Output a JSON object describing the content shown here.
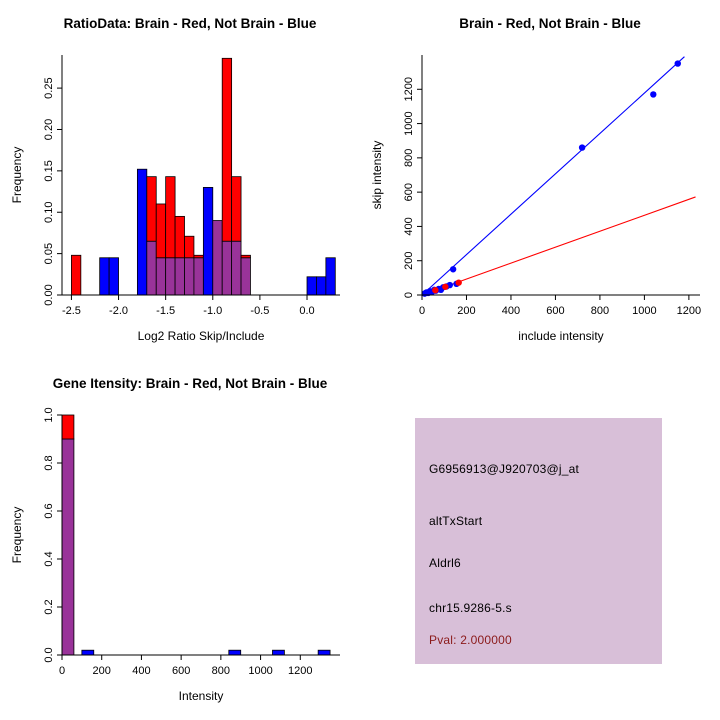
{
  "colors": {
    "red": "#FF0000",
    "blue": "#0000FF",
    "purple": "#993399",
    "background": "#FFFFFF",
    "axis": "#000000",
    "info_box_bg": "#D8BFD8",
    "pval_color": "#8B1A1A",
    "text": "#000000"
  },
  "chart_data": [
    {
      "id": "ratio_hist",
      "type": "bar",
      "title": "RatioData: Brain - Red, Not Brain - Blue",
      "xlabel": "Log2 Ratio Skip/Include",
      "ylabel": "Frequency",
      "xlim": [
        -2.6,
        0.35
      ],
      "ylim": [
        0,
        0.29
      ],
      "xticks": [
        -2.5,
        -2.0,
        -1.5,
        -1.0,
        -0.5,
        0.0
      ],
      "xtick_labels": [
        "-2.5",
        "-2.0",
        "-1.5",
        "-1.0",
        "-0.5",
        "0.0"
      ],
      "yticks": [
        0,
        0.05,
        0.1,
        0.15,
        0.2,
        0.25
      ],
      "ytick_labels": [
        "0.00",
        "0.05",
        "0.10",
        "0.15",
        "0.20",
        "0.25"
      ],
      "bin_width": 0.1,
      "bins": [
        {
          "x": -2.5,
          "red": 0.048,
          "blue": 0
        },
        {
          "x": -2.2,
          "red": 0,
          "blue": 0.045
        },
        {
          "x": -2.1,
          "red": 0,
          "blue": 0.045
        },
        {
          "x": -1.8,
          "red": 0,
          "blue": 0.152
        },
        {
          "x": -1.7,
          "red": 0.143,
          "blue": 0.065
        },
        {
          "x": -1.6,
          "red": 0.11,
          "blue": 0.045
        },
        {
          "x": -1.5,
          "red": 0.143,
          "blue": 0.045
        },
        {
          "x": -1.4,
          "red": 0.095,
          "blue": 0.045
        },
        {
          "x": -1.3,
          "red": 0.071,
          "blue": 0.045
        },
        {
          "x": -1.2,
          "red": 0.048,
          "blue": 0.045
        },
        {
          "x": -1.1,
          "red": 0,
          "blue": 0.13
        },
        {
          "x": -1.0,
          "red": 0.09,
          "blue": 0.09
        },
        {
          "x": -0.9,
          "red": 0.286,
          "blue": 0.065
        },
        {
          "x": -0.8,
          "red": 0.143,
          "blue": 0.065
        },
        {
          "x": -0.7,
          "red": 0.048,
          "blue": 0.045
        },
        {
          "x": 0.0,
          "red": 0,
          "blue": 0.022
        },
        {
          "x": 0.1,
          "red": 0,
          "blue": 0.022
        },
        {
          "x": 0.2,
          "red": 0,
          "blue": 0.045
        }
      ]
    },
    {
      "id": "intensity_scatter",
      "type": "scatter",
      "title": "Brain - Red, Not Brain - Blue",
      "xlabel": "include intensity",
      "ylabel": "skip intensity",
      "xlim": [
        0,
        1250
      ],
      "ylim": [
        0,
        1400
      ],
      "xticks": [
        0,
        200,
        400,
        600,
        800,
        1000,
        1200
      ],
      "xtick_labels": [
        "0",
        "200",
        "400",
        "600",
        "800",
        "1000",
        "1200"
      ],
      "yticks": [
        0,
        200,
        400,
        600,
        800,
        1000,
        1200
      ],
      "ytick_labels": [
        "0",
        "200",
        "400",
        "600",
        "800",
        "1000",
        "1200"
      ],
      "series": [
        {
          "name": "not_brain",
          "color_key": "blue",
          "points": [
            [
              12,
              8
            ],
            [
              20,
              15
            ],
            [
              28,
              12
            ],
            [
              35,
              22
            ],
            [
              45,
              18
            ],
            [
              55,
              30
            ],
            [
              62,
              25
            ],
            [
              75,
              35
            ],
            [
              85,
              30
            ],
            [
              95,
              45
            ],
            [
              110,
              50
            ],
            [
              125,
              58
            ],
            [
              140,
              150
            ],
            [
              155,
              65
            ],
            [
              720,
              860
            ],
            [
              1040,
              1170
            ],
            [
              1150,
              1350
            ]
          ]
        },
        {
          "name": "brain",
          "color_key": "red",
          "points": [
            [
              60,
              28
            ],
            [
              105,
              48
            ],
            [
              165,
              72
            ]
          ]
        }
      ],
      "lines": [
        {
          "name": "not_brain_fit",
          "color_key": "blue",
          "from": [
            0,
            0
          ],
          "to": [
            1180,
            1390
          ]
        },
        {
          "name": "brain_fit",
          "color_key": "red",
          "from": [
            0,
            0
          ],
          "to": [
            1230,
            572
          ]
        }
      ]
    },
    {
      "id": "gene_hist",
      "type": "bar",
      "title": "Gene Itensity: Brain - Red, Not Brain - Blue",
      "xlabel": "Intensity",
      "ylabel": "Frequency",
      "xlim": [
        0,
        1400
      ],
      "ylim": [
        0,
        1.0
      ],
      "xticks": [
        0,
        200,
        400,
        600,
        800,
        1000,
        1200
      ],
      "xtick_labels": [
        "0",
        "200",
        "400",
        "600",
        "800",
        "1000",
        "1200"
      ],
      "yticks": [
        0,
        0.2,
        0.4,
        0.6,
        0.8,
        1.0
      ],
      "ytick_labels": [
        "0.0",
        "0.2",
        "0.4",
        "0.6",
        "0.8",
        "1.0"
      ],
      "bin_width": 60,
      "bins": [
        {
          "x": 0,
          "red": 1.0,
          "blue": 0.9
        },
        {
          "x": 100,
          "red": 0,
          "blue": 0.02
        },
        {
          "x": 840,
          "red": 0,
          "blue": 0.02
        },
        {
          "x": 1060,
          "red": 0,
          "blue": 0.02
        },
        {
          "x": 1290,
          "red": 0,
          "blue": 0.02
        }
      ]
    }
  ],
  "info_panel": {
    "probe_id": "G6956913@J920703@j_at",
    "event_type": "altTxStart",
    "gene": "Aldrl6",
    "location": "chr15.9286-5.s",
    "pval": "Pval: 2.000000"
  }
}
